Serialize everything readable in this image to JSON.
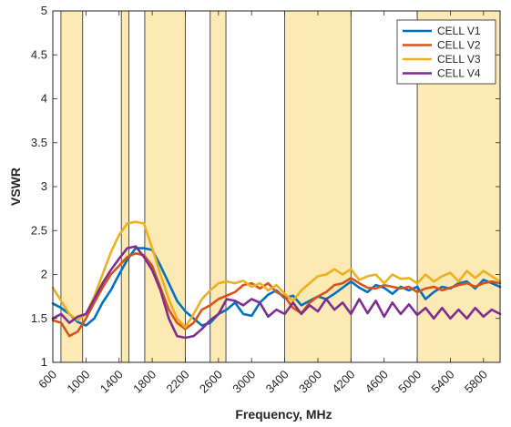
{
  "chart_data": {
    "type": "line",
    "xlabel": "Frequency, MHz",
    "ylabel": "VSWR",
    "xlim": [
      600,
      6000
    ],
    "ylim": [
      1,
      5
    ],
    "xticks": [
      600,
      1000,
      1400,
      1800,
      2200,
      2600,
      3000,
      3400,
      3800,
      4200,
      4600,
      5000,
      5400,
      5800
    ],
    "xtick_labels": [
      "600",
      "1000",
      "1400",
      "1800",
      "2200",
      "2600",
      "3000",
      "3400",
      "3800",
      "4200",
      "4600",
      "5000",
      "5400",
      "5800"
    ],
    "yticks": [
      1,
      1.5,
      2,
      2.5,
      3,
      3.5,
      4,
      4.5,
      5
    ],
    "ytick_labels": [
      "1",
      "1.5",
      "2",
      "2.5",
      "3",
      "3.5",
      "4",
      "4.5",
      "5"
    ],
    "grid": false,
    "legend_position": "top-right",
    "bands": [
      [
        698,
        960
      ],
      [
        1427,
        1518
      ],
      [
        1710,
        2200
      ],
      [
        2500,
        2690
      ],
      [
        3400,
        4200
      ],
      [
        5000,
        6000
      ]
    ],
    "band_color": "#fde9b4",
    "series": [
      {
        "name": "CELL V1",
        "color": "#0072bd",
        "x": [
          600,
          700,
          800,
          900,
          1000,
          1100,
          1200,
          1300,
          1400,
          1500,
          1600,
          1700,
          1800,
          1900,
          2000,
          2100,
          2200,
          2300,
          2400,
          2500,
          2600,
          2700,
          2800,
          2900,
          3000,
          3100,
          3200,
          3300,
          3400,
          3500,
          3600,
          3700,
          3800,
          3900,
          4000,
          4100,
          4200,
          4300,
          4400,
          4500,
          4600,
          4700,
          4800,
          4900,
          5000,
          5100,
          5200,
          5300,
          5400,
          5500,
          5600,
          5700,
          5800,
          5900,
          6000
        ],
        "y": [
          1.67,
          1.62,
          1.55,
          1.46,
          1.42,
          1.5,
          1.68,
          1.82,
          2.0,
          2.17,
          2.3,
          2.3,
          2.28,
          2.1,
          1.9,
          1.7,
          1.58,
          1.5,
          1.42,
          1.45,
          1.55,
          1.6,
          1.68,
          1.55,
          1.53,
          1.68,
          1.77,
          1.82,
          1.73,
          1.76,
          1.65,
          1.7,
          1.75,
          1.72,
          1.78,
          1.85,
          1.92,
          1.85,
          1.8,
          1.88,
          1.85,
          1.78,
          1.86,
          1.82,
          1.86,
          1.72,
          1.8,
          1.86,
          1.84,
          1.9,
          1.92,
          1.84,
          1.94,
          1.9,
          1.86
        ]
      },
      {
        "name": "CELL V2",
        "color": "#d95319",
        "x": [
          600,
          700,
          800,
          900,
          1000,
          1100,
          1200,
          1300,
          1400,
          1500,
          1600,
          1700,
          1800,
          1900,
          2000,
          2100,
          2200,
          2300,
          2400,
          2500,
          2600,
          2700,
          2800,
          2900,
          3000,
          3100,
          3200,
          3300,
          3400,
          3500,
          3600,
          3700,
          3800,
          3900,
          4000,
          4100,
          4200,
          4300,
          4400,
          4500,
          4600,
          4700,
          4800,
          4900,
          5000,
          5100,
          5200,
          5300,
          5400,
          5500,
          5600,
          5700,
          5800,
          5900,
          6000
        ],
        "y": [
          1.48,
          1.45,
          1.3,
          1.35,
          1.5,
          1.68,
          1.85,
          2.0,
          2.1,
          2.2,
          2.24,
          2.22,
          2.1,
          1.85,
          1.6,
          1.45,
          1.38,
          1.45,
          1.6,
          1.65,
          1.72,
          1.76,
          1.8,
          1.88,
          1.9,
          1.84,
          1.9,
          1.8,
          1.75,
          1.62,
          1.56,
          1.68,
          1.75,
          1.8,
          1.88,
          1.9,
          1.96,
          1.9,
          1.85,
          1.84,
          1.88,
          1.86,
          1.84,
          1.86,
          1.8,
          1.84,
          1.86,
          1.82,
          1.85,
          1.88,
          1.9,
          1.86,
          1.9,
          1.92,
          1.9
        ]
      },
      {
        "name": "CELL V3",
        "color": "#edb120",
        "x": [
          600,
          700,
          800,
          900,
          1000,
          1100,
          1200,
          1300,
          1400,
          1500,
          1600,
          1700,
          1800,
          1900,
          2000,
          2100,
          2200,
          2300,
          2400,
          2500,
          2600,
          2700,
          2800,
          2900,
          3000,
          3100,
          3200,
          3300,
          3400,
          3500,
          3600,
          3700,
          3800,
          3900,
          4000,
          4100,
          4200,
          4300,
          4400,
          4500,
          4600,
          4700,
          4800,
          4900,
          5000,
          5100,
          5200,
          5300,
          5400,
          5500,
          5600,
          5700,
          5800,
          5900,
          6000
        ],
        "y": [
          1.85,
          1.7,
          1.55,
          1.48,
          1.55,
          1.75,
          2.0,
          2.25,
          2.45,
          2.58,
          2.6,
          2.58,
          2.3,
          2.0,
          1.72,
          1.5,
          1.4,
          1.55,
          1.72,
          1.82,
          1.9,
          1.92,
          1.9,
          1.93,
          1.86,
          1.9,
          1.82,
          1.88,
          1.78,
          1.7,
          1.82,
          1.9,
          1.98,
          2.0,
          2.06,
          2.0,
          2.06,
          1.94,
          1.98,
          2.0,
          1.9,
          2.0,
          1.95,
          1.96,
          1.9,
          2.0,
          1.92,
          1.98,
          2.02,
          1.92,
          2.04,
          1.96,
          2.04,
          1.98,
          1.92
        ]
      },
      {
        "name": "CELL V4",
        "color": "#7e2f8e",
        "x": [
          600,
          700,
          800,
          900,
          1000,
          1100,
          1200,
          1300,
          1400,
          1500,
          1600,
          1700,
          1800,
          1900,
          2000,
          2100,
          2200,
          2300,
          2400,
          2500,
          2600,
          2700,
          2800,
          2900,
          3000,
          3100,
          3200,
          3300,
          3400,
          3500,
          3600,
          3700,
          3800,
          3900,
          4000,
          4100,
          4200,
          4300,
          4400,
          4500,
          4600,
          4700,
          4800,
          4900,
          5000,
          5100,
          5200,
          5300,
          5400,
          5500,
          5600,
          5700,
          5800,
          5900,
          6000
        ],
        "y": [
          1.5,
          1.55,
          1.45,
          1.52,
          1.55,
          1.72,
          1.9,
          2.05,
          2.18,
          2.3,
          2.32,
          2.2,
          2.05,
          1.82,
          1.5,
          1.3,
          1.28,
          1.3,
          1.38,
          1.48,
          1.55,
          1.72,
          1.7,
          1.65,
          1.72,
          1.68,
          1.52,
          1.6,
          1.55,
          1.68,
          1.55,
          1.65,
          1.58,
          1.72,
          1.6,
          1.68,
          1.55,
          1.72,
          1.56,
          1.7,
          1.52,
          1.68,
          1.55,
          1.66,
          1.54,
          1.62,
          1.5,
          1.62,
          1.5,
          1.6,
          1.5,
          1.62,
          1.52,
          1.6,
          1.55
        ]
      }
    ]
  }
}
